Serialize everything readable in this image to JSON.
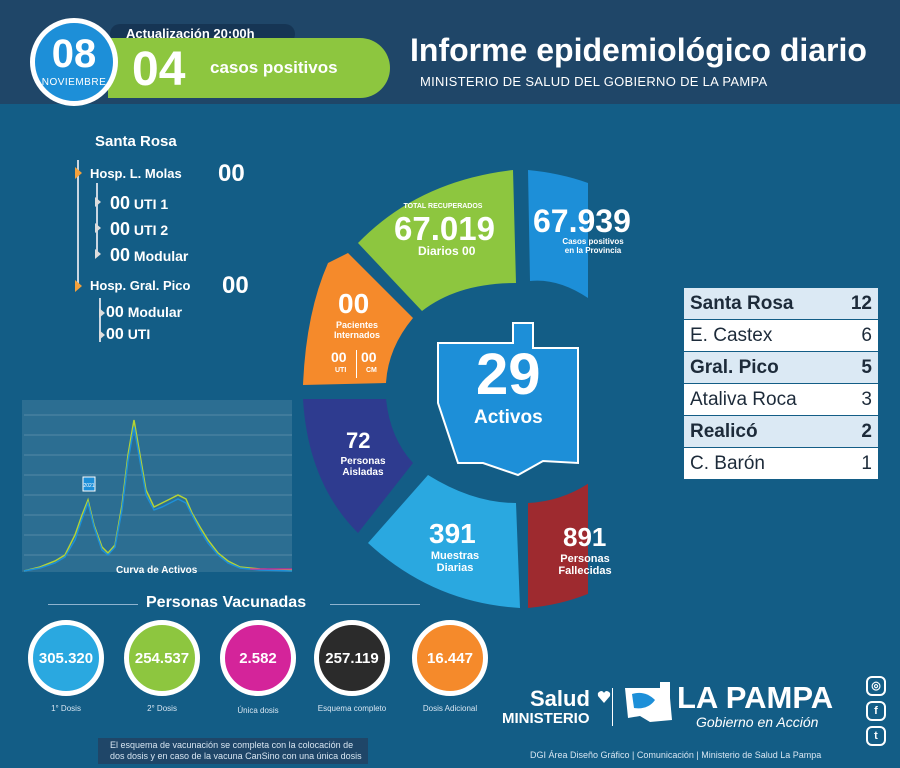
{
  "header": {
    "day": "08",
    "month": "NOVIEMBRE",
    "update": "Actualización 20:00h",
    "cases_count": "04",
    "cases_label": "casos positivos",
    "title": "Informe epidemiológico diario",
    "subtitle": "MINISTERIO DE SALUD DEL GOBIERNO DE LA PAMPA"
  },
  "hospitals": {
    "city": "Santa Rosa",
    "molas": {
      "label": "Hosp. L. Molas",
      "value": "00",
      "uti1": "00",
      "uti1_label": "UTI 1",
      "uti2": "00",
      "uti2_label": "UTI 2",
      "modular": "00",
      "modular_label": "Modular"
    },
    "pico": {
      "label": "Hosp. Gral. Pico",
      "value": "00",
      "modular": "00",
      "modular_label": "Modular",
      "uti": "00",
      "uti_label": "UTI"
    }
  },
  "wheel": {
    "recovered_label": "TOTAL RECUPERADOS",
    "recovered": "67.019",
    "daily_label": "Diarios",
    "daily": "00",
    "positives": "67.939",
    "positives_label1": "Casos positivos",
    "positives_label2": "en la Provincia",
    "internados": "00",
    "internados_label1": "Pacientes",
    "internados_label2": "Internados",
    "uti": "00",
    "uti_label": "UTI",
    "cm": "00",
    "cm_label": "CM",
    "active": "29",
    "active_label": "Activos",
    "isolated": "72",
    "isolated_label1": "Personas",
    "isolated_label2": "Aisladas",
    "samples": "391",
    "samples_label1": "Muestras",
    "samples_label2": "Diarias",
    "deaths": "891",
    "deaths_label1": "Personas",
    "deaths_label2": "Fallecidas"
  },
  "localities": [
    {
      "name": "Santa Rosa",
      "value": "12",
      "bold": true
    },
    {
      "name": "E. Castex",
      "value": "6",
      "bold": false
    },
    {
      "name": "Gral. Pico",
      "value": "5",
      "bold": true
    },
    {
      "name": "Ataliva Roca",
      "value": "3",
      "bold": false
    },
    {
      "name": "Realicó",
      "value": "2",
      "bold": true
    },
    {
      "name": "C. Barón",
      "value": "1",
      "bold": false
    }
  ],
  "curve": {
    "label": "Curva de Activos",
    "marker": "2021"
  },
  "vaccines": {
    "title": "Personas Vacunadas",
    "items": [
      {
        "value": "305.320",
        "label": "1° Dosis",
        "color": "#2aa8e0"
      },
      {
        "value": "254.537",
        "label": "2° Dosis",
        "color": "#8dc63f"
      },
      {
        "value": "2.582",
        "label": "Única dosis",
        "color": "#d4249a"
      },
      {
        "value": "257.119",
        "label": "Esquema completo",
        "color": "#2b2b2b"
      },
      {
        "value": "16.447",
        "label": "Dosis Adicional",
        "color": "#f58a2b"
      }
    ],
    "note1": "El esquema de vacunación se completa con la colocación de",
    "note2": "dos dosis y en caso de la vacuna CanSino con una única dosis"
  },
  "footer": {
    "salud": "Salud",
    "ministerio": "MINISTERIO",
    "lapampa": "LA PAMPA",
    "gobierno": "Gobierno en Acción",
    "credits": "DGI Área Diseño Gráfico  |  Comunicación  |  Ministerio de Salud La Pampa"
  },
  "colors": {
    "bg": "#135d86",
    "green": "#8dc63f",
    "blue": "#1d8fd8",
    "orange": "#f58a2b",
    "navy": "#2e3b8f",
    "sky": "#2aa8e0",
    "red": "#9e2a2f"
  },
  "icons": [
    "instagram-icon",
    "facebook-icon",
    "twitter-icon",
    "heart-arrow-icon"
  ]
}
